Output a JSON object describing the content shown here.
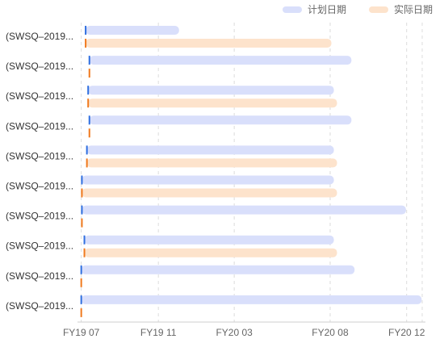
{
  "chart_data": {
    "type": "bar",
    "orientation": "horizontal",
    "subtype": "gantt",
    "legend_position": "top-right",
    "grid": "vertical dashed",
    "series": [
      {
        "name": "计划日期",
        "color": "#d9dffb",
        "start_marker_color": "#2f6fe0"
      },
      {
        "name": "实际日期",
        "color": "#fde3cc",
        "start_marker_color": "#f07a1e"
      }
    ],
    "x_axis": {
      "unit": "month",
      "range": [
        "2019-06-25",
        "2020-12-31"
      ],
      "ticks": [
        {
          "label": "FY19 07",
          "date": "2019-07-01"
        },
        {
          "label": "FY19 11",
          "date": "2019-11-01"
        },
        {
          "label": "FY20 03",
          "date": "2020-03-01"
        },
        {
          "label": "FY20 08",
          "date": "2020-08-01"
        },
        {
          "label": "FY20 12",
          "date": "2020-12-01"
        }
      ]
    },
    "rows": [
      {
        "label": "(SWSQ–2019...",
        "plan": {
          "start": "2019-07-08",
          "end": "2019-12-04"
        },
        "actual": {
          "start": "2019-07-08",
          "end": "2020-08-03"
        }
      },
      {
        "label": "(SWSQ–2019...",
        "plan": {
          "start": "2019-07-14",
          "end": "2020-09-04"
        },
        "actual": {
          "start": "2019-07-14",
          "end": null
        }
      },
      {
        "label": "(SWSQ–2019...",
        "plan": {
          "start": "2019-07-12",
          "end": "2020-08-07"
        },
        "actual": {
          "start": "2019-07-12",
          "end": "2020-08-12"
        }
      },
      {
        "label": "(SWSQ–2019...",
        "plan": {
          "start": "2019-07-14",
          "end": "2020-09-04"
        },
        "actual": {
          "start": "2019-07-14",
          "end": null
        }
      },
      {
        "label": "(SWSQ–2019...",
        "plan": {
          "start": "2019-07-10",
          "end": "2020-08-07"
        },
        "actual": {
          "start": "2019-07-10",
          "end": "2020-08-12"
        }
      },
      {
        "label": "(SWSQ–2019...",
        "plan": {
          "start": "2019-07-02",
          "end": "2020-08-07"
        },
        "actual": {
          "start": "2019-07-02",
          "end": "2020-08-12"
        }
      },
      {
        "label": "(SWSQ–2019...",
        "plan": {
          "start": "2019-07-02",
          "end": "2020-11-30"
        },
        "actual": {
          "start": "2019-07-02",
          "end": null
        }
      },
      {
        "label": "(SWSQ–2019...",
        "plan": {
          "start": "2019-07-06",
          "end": "2020-08-07"
        },
        "actual": {
          "start": "2019-07-06",
          "end": "2020-08-12"
        }
      },
      {
        "label": "(SWSQ–2019...",
        "plan": {
          "start": "2019-07-01",
          "end": "2020-09-09"
        },
        "actual": {
          "start": "2019-07-01",
          "end": null
        }
      },
      {
        "label": "(SWSQ–2019...",
        "plan": {
          "start": "2019-07-01",
          "end": "2020-12-25"
        },
        "actual": {
          "start": "2019-07-01",
          "end": null
        }
      }
    ]
  }
}
